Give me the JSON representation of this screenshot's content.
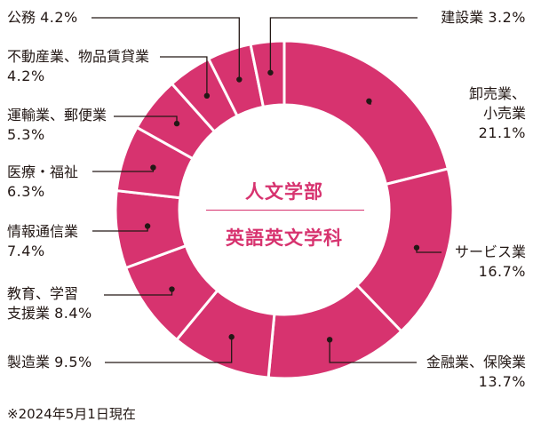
{
  "chart_data": {
    "type": "pie",
    "center_title": "人文学部",
    "center_subtitle": "英語英文学科",
    "note": "※2024年5月1日現在",
    "colors": {
      "slice": "#d7336f",
      "separator": "#ffffff",
      "leader": "#231815",
      "text": "#231815"
    },
    "slices": [
      {
        "label_lines": [
          "卸売業、",
          "小売業"
        ],
        "value_text": "21.1%",
        "value": 21.1
      },
      {
        "label_lines": [
          "サービス業"
        ],
        "value_text": "16.7%",
        "value": 16.7
      },
      {
        "label_lines": [
          "金融業、保険業"
        ],
        "value_text": "13.7%",
        "value": 13.7
      },
      {
        "label_lines": [
          "製造業"
        ],
        "value_text": "9.5%",
        "value": 9.5
      },
      {
        "label_lines": [
          "教育、学習",
          "支援業"
        ],
        "value_text": "8.4%",
        "value": 8.4
      },
      {
        "label_lines": [
          "情報通信業"
        ],
        "value_text": "7.4%",
        "value": 7.4
      },
      {
        "label_lines": [
          "医療・福祉"
        ],
        "value_text": "6.3%",
        "value": 6.3
      },
      {
        "label_lines": [
          "運輸業、郵便業"
        ],
        "value_text": "5.3%",
        "value": 5.3
      },
      {
        "label_lines": [
          "不動産業、物品賃貸業"
        ],
        "value_text": "4.2%",
        "value": 4.2
      },
      {
        "label_lines": [
          "公務"
        ],
        "value_text": "4.2%",
        "value": 4.2
      },
      {
        "label_lines": [
          "建設業"
        ],
        "value_text": "3.2%",
        "value": 3.2
      }
    ]
  }
}
